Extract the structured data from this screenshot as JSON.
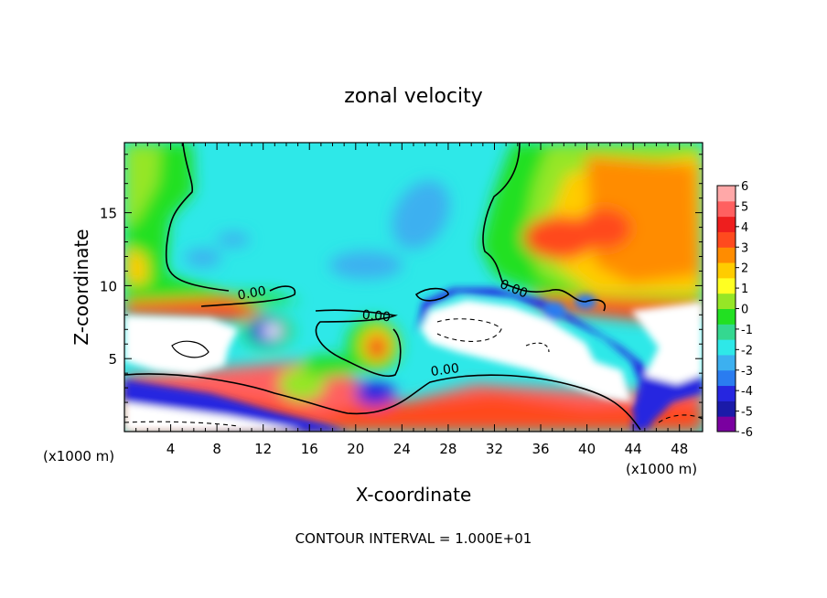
{
  "chart_data": {
    "type": "heatmap",
    "title": "zonal velocity",
    "xlabel": "X-coordinate",
    "ylabel": "Z-coordinate",
    "x_unit_left": "(x1000 m)",
    "x_unit_right": "(x1000 m)",
    "footer": "CONTOUR INTERVAL = 1.000E+01",
    "xlim": [
      0,
      50
    ],
    "ylim": [
      0,
      19.8
    ],
    "x_ticks": [
      4,
      8,
      12,
      16,
      20,
      24,
      28,
      32,
      36,
      40,
      44,
      48
    ],
    "y_ticks": [
      5,
      10,
      15
    ],
    "colorbar": {
      "min": -6,
      "max": 6,
      "labels": [
        6,
        5,
        4,
        3,
        2,
        1,
        0,
        -1,
        -2,
        -3,
        -4,
        -5,
        -6
      ],
      "colors": [
        "#7a00a0",
        "#1a1aa8",
        "#2626e0",
        "#2a7cf0",
        "#3cb0f0",
        "#2ee8e8",
        "#34d890",
        "#22e022",
        "#96e626",
        "#ffff22",
        "#ffcc00",
        "#ff8c00",
        "#ff4a1e",
        "#ee1e1e",
        "#ff6060",
        "#ffa8a8"
      ]
    },
    "contour_labels": [
      "0.00",
      "0.00",
      "0.00",
      "0.00"
    ]
  }
}
